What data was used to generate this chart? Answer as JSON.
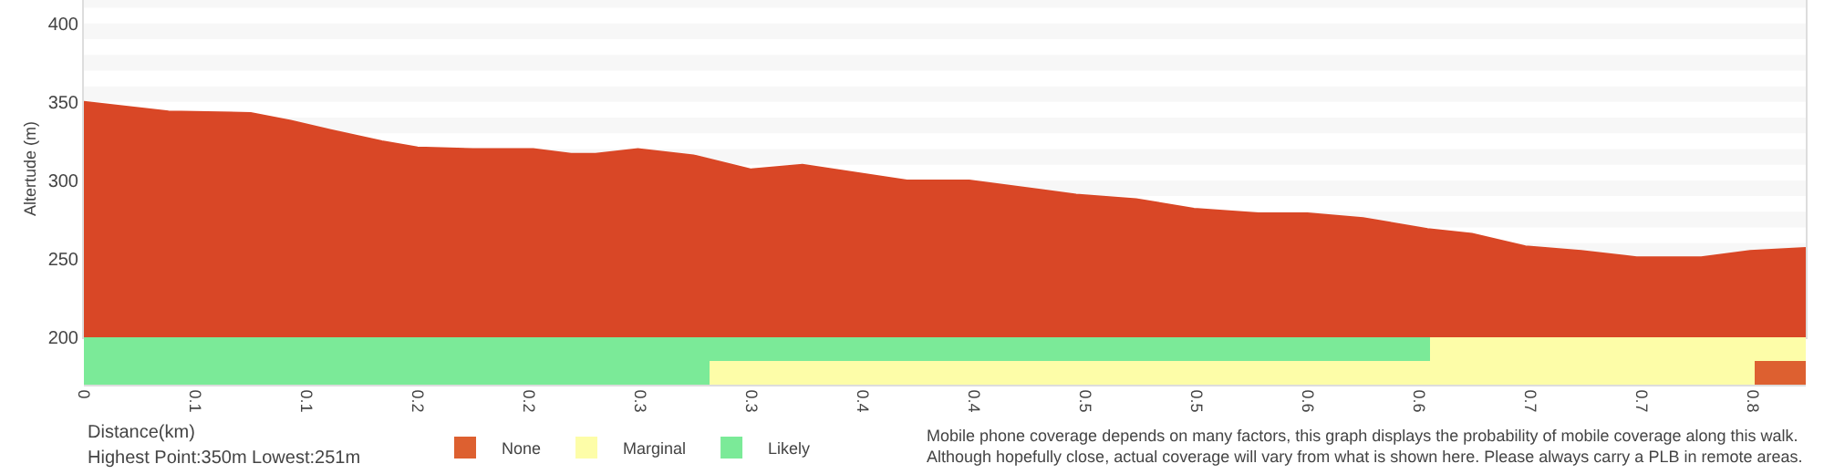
{
  "chart_data": [
    {
      "type": "area",
      "ylabel": "Altertude (m)",
      "color": "#d94726",
      "x": [
        0,
        0.019,
        0.038,
        0.075,
        0.093,
        0.111,
        0.134,
        0.15,
        0.175,
        0.202,
        0.219,
        0.23,
        0.249,
        0.274,
        0.3,
        0.323,
        0.37,
        0.398,
        0.43,
        0.446,
        0.473,
        0.499,
        0.528,
        0.55,
        0.575,
        0.604,
        0.624,
        0.648,
        0.673,
        0.698,
        0.727,
        0.749,
        0.774
      ],
      "values": [
        350,
        347,
        344,
        343,
        338,
        332,
        325,
        321,
        320,
        320,
        317,
        317,
        320,
        316,
        307,
        310,
        300,
        300,
        294,
        291,
        288,
        282,
        279,
        279,
        276,
        269,
        266,
        258,
        255,
        251,
        251,
        255,
        257
      ],
      "xlim": [
        0,
        0.774
      ],
      "ylim": [
        200,
        415
      ],
      "yticks": [
        200,
        250,
        300,
        350,
        400
      ],
      "tick_labels": "y",
      "grid": false,
      "bands": [
        {
          "axis": "y",
          "from": 410,
          "to": 415,
          "color": "#f7f7f7"
        },
        {
          "axis": "y",
          "from": 390,
          "to": 400,
          "color": "#f7f7f7"
        },
        {
          "axis": "y",
          "from": 370,
          "to": 380,
          "color": "#f7f7f7"
        },
        {
          "axis": "y",
          "from": 350,
          "to": 360,
          "color": "#f7f7f7"
        },
        {
          "axis": "y",
          "from": 330,
          "to": 340,
          "color": "#f7f7f7"
        },
        {
          "axis": "y",
          "from": 310,
          "to": 320,
          "color": "#f7f7f7"
        },
        {
          "axis": "y",
          "from": 290,
          "to": 300,
          "color": "#f7f7f7"
        },
        {
          "axis": "y",
          "from": 270,
          "to": 280,
          "color": "#f7f7f7"
        },
        {
          "axis": "y",
          "from": 250,
          "to": 260,
          "color": "#f7f7f7"
        }
      ]
    },
    {
      "type": "bar",
      "orientation": "horizontal",
      "stacked": true,
      "categories": [
        null,
        null
      ],
      "xlabel": "Distance(km)",
      "xlim": [
        0,
        0.774
      ],
      "xticks": [
        0,
        {
          "value": 0.05,
          "label": "0.1"
        },
        {
          "value": 0.1,
          "label": "0.1"
        },
        {
          "value": 0.15,
          "label": "0.2"
        },
        {
          "value": 0.2,
          "label": "0.2"
        },
        {
          "value": 0.25,
          "label": "0.3"
        },
        {
          "value": 0.3,
          "label": "0.3"
        },
        {
          "value": 0.35,
          "label": "0.4"
        },
        {
          "value": 0.4,
          "label": "0.4"
        },
        {
          "value": 0.45,
          "label": "0.5"
        },
        {
          "value": 0.5,
          "label": "0.5"
        },
        {
          "value": 0.55,
          "label": "0.6"
        },
        {
          "value": 0.6,
          "label": "0.6"
        },
        {
          "value": 0.65,
          "label": "0.7"
        },
        {
          "value": 0.7,
          "label": "0.7"
        },
        {
          "value": 0.75,
          "label": "0.8"
        }
      ],
      "tick_labels": "x",
      "legend": "bottom left",
      "series": [
        {
          "name": "Likely",
          "color": "#7bea98",
          "values": [
            0.605,
            0.281
          ]
        },
        {
          "name": "Marginal",
          "color": "#fdfda8",
          "values": [
            0.169,
            0.47
          ]
        },
        {
          "name": "None",
          "color": "#dd6030",
          "values": [
            null,
            0.023
          ]
        }
      ],
      "annotations": [
        "Highest Point:350m Lowest:251m",
        "Mobile phone coverage depends on many factors, this graph displays the probability of mobile coverage along this walk.\nAlthough hopefully close, actual coverage will vary from what is shown here. Please always carry a PLB in remote areas."
      ]
    }
  ]
}
